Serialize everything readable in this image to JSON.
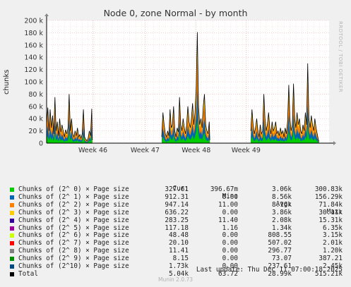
{
  "chart_data": {
    "type": "area",
    "title": "Node 0, zone Normal - by month",
    "ylabel": "chunks",
    "ylim": [
      0,
      200000
    ],
    "yticks": [
      "0",
      "20 k",
      "40 k",
      "60 k",
      "80 k",
      "100 k",
      "120 k",
      "140 k",
      "160 k",
      "180 k",
      "200 k"
    ],
    "xticks": [
      "Week 46",
      "Week 47",
      "Week 48",
      "Week 49"
    ],
    "side_label": "RRDTOOL / TOBI OETIKER",
    "legend_headers": {
      "cur": "Cur:",
      "min": "Min:",
      "avg": "Avg:",
      "max": "Max:"
    },
    "series": [
      {
        "name": "Chunks of (2^ 0) × Page size",
        "color": "#00cc00",
        "cur": "327.61",
        "min": "396.67m",
        "avg": "3.06k",
        "max": "300.83k"
      },
      {
        "name": "Chunks of (2^ 1) × Page size",
        "color": "#0066b3",
        "cur": "912.31",
        "min": "0.00",
        "avg": "8.56k",
        "max": "156.29k"
      },
      {
        "name": "Chunks of (2^ 2) × Page size",
        "color": "#ff8000",
        "cur": "947.14",
        "min": "11.00",
        "avg": "8.16k",
        "max": "71.84k"
      },
      {
        "name": "Chunks of (2^ 3) × Page size",
        "color": "#ffcc00",
        "cur": "636.22",
        "min": "0.00",
        "avg": "3.86k",
        "max": "30.11k"
      },
      {
        "name": "Chunks of (2^ 4) × Page size",
        "color": "#330099",
        "cur": "283.25",
        "min": "11.40",
        "avg": "2.08k",
        "max": "15.31k"
      },
      {
        "name": "Chunks of (2^ 5) × Page size",
        "color": "#990099",
        "cur": "117.18",
        "min": "1.16",
        "avg": "1.34k",
        "max": "6.35k"
      },
      {
        "name": "Chunks of (2^ 6) × Page size",
        "color": "#ccff00",
        "cur": "48.48",
        "min": "0.00",
        "avg": "808.55",
        "max": "3.15k"
      },
      {
        "name": "Chunks of (2^ 7) × Page size",
        "color": "#ff0000",
        "cur": "20.10",
        "min": "0.00",
        "avg": "507.02",
        "max": "2.01k"
      },
      {
        "name": "Chunks of (2^ 8) × Page size",
        "color": "#808080",
        "cur": "11.41",
        "min": "0.00",
        "avg": "296.77",
        "max": "1.20k"
      },
      {
        "name": "Chunks of (2^ 9) × Page size",
        "color": "#008f00",
        "cur": "8.15",
        "min": "0.00",
        "avg": "73.07",
        "max": "387.21"
      },
      {
        "name": "Chunks of (2^10) × Page size",
        "color": "#00487d",
        "cur": "1.73k",
        "min": "0.00",
        "avg": "237.61",
        "max": "2.45k"
      },
      {
        "name": "Total",
        "color": "#000000",
        "cur": "5.04k",
        "min": "63.72",
        "avg": "28.99k",
        "max": "515.21k"
      }
    ],
    "total_profile": {
      "segments": [
        {
          "days": [
            0.0,
            7.7
          ],
          "points": [
            [
              0.0,
              30000
            ],
            [
              0.2,
              58000
            ],
            [
              0.4,
              20000
            ],
            [
              0.6,
              55000
            ],
            [
              0.8,
              25000
            ],
            [
              1.0,
              45000
            ],
            [
              1.2,
              15000
            ],
            [
              1.4,
              75000
            ],
            [
              1.6,
              20000
            ],
            [
              1.8,
              35000
            ],
            [
              2.0,
              12000
            ],
            [
              2.2,
              40000
            ],
            [
              2.4,
              18000
            ],
            [
              2.6,
              30000
            ],
            [
              2.8,
              20000
            ],
            [
              3.0,
              10000
            ],
            [
              3.2,
              22000
            ],
            [
              3.4,
              15000
            ],
            [
              3.6,
              25000
            ],
            [
              3.8,
              80000
            ],
            [
              4.0,
              20000
            ],
            [
              4.2,
              40000
            ],
            [
              4.4,
              15000
            ],
            [
              4.6,
              10000
            ],
            [
              4.8,
              20000
            ],
            [
              5.0,
              12000
            ],
            [
              5.2,
              25000
            ],
            [
              5.4,
              10000
            ],
            [
              5.6,
              14000
            ],
            [
              5.8,
              8000
            ],
            [
              6.0,
              15000
            ],
            [
              6.2,
              55000
            ],
            [
              6.4,
              10000
            ],
            [
              6.6,
              6000
            ],
            [
              6.8,
              4000
            ],
            [
              7.0,
              8000
            ],
            [
              7.2,
              20000
            ],
            [
              7.4,
              12000
            ],
            [
              7.6,
              56000
            ],
            [
              7.7,
              5000
            ]
          ]
        },
        {
          "days": [
            19.4,
            27.5
          ],
          "points": [
            [
              19.4,
              10000
            ],
            [
              19.6,
              50000
            ],
            [
              19.8,
              30000
            ],
            [
              20.0,
              15000
            ],
            [
              20.2,
              10000
            ],
            [
              20.4,
              20000
            ],
            [
              20.6,
              12000
            ],
            [
              20.8,
              55000
            ],
            [
              21.0,
              25000
            ],
            [
              21.2,
              30000
            ],
            [
              21.4,
              60000
            ],
            [
              21.6,
              20000
            ],
            [
              21.8,
              10000
            ],
            [
              22.0,
              25000
            ],
            [
              22.2,
              18000
            ],
            [
              22.4,
              75000
            ],
            [
              22.6,
              30000
            ],
            [
              22.8,
              20000
            ],
            [
              23.0,
              40000
            ],
            [
              23.2,
              25000
            ],
            [
              23.4,
              15000
            ],
            [
              23.6,
              30000
            ],
            [
              23.8,
              60000
            ],
            [
              24.0,
              35000
            ],
            [
              24.2,
              25000
            ],
            [
              24.4,
              40000
            ],
            [
              24.6,
              65000
            ],
            [
              24.8,
              30000
            ],
            [
              25.0,
              50000
            ],
            [
              25.2,
              90000
            ],
            [
              25.4,
              181000
            ],
            [
              25.6,
              60000
            ],
            [
              25.8,
              30000
            ],
            [
              26.0,
              40000
            ],
            [
              26.2,
              25000
            ],
            [
              26.4,
              60000
            ],
            [
              26.6,
              80000
            ],
            [
              26.8,
              30000
            ],
            [
              27.0,
              20000
            ],
            [
              27.2,
              15000
            ],
            [
              27.4,
              35000
            ],
            [
              27.5,
              5000
            ]
          ]
        },
        {
          "days": [
            34.4,
            45.9
          ],
          "points": [
            [
              34.4,
              20000
            ],
            [
              34.6,
              55000
            ],
            [
              34.8,
              30000
            ],
            [
              35.0,
              15000
            ],
            [
              35.2,
              25000
            ],
            [
              35.4,
              40000
            ],
            [
              35.6,
              20000
            ],
            [
              35.8,
              10000
            ],
            [
              36.0,
              30000
            ],
            [
              36.2,
              15000
            ],
            [
              36.4,
              20000
            ],
            [
              36.6,
              80000
            ],
            [
              36.8,
              40000
            ],
            [
              37.0,
              20000
            ],
            [
              37.2,
              30000
            ],
            [
              37.4,
              50000
            ],
            [
              37.6,
              25000
            ],
            [
              37.8,
              15000
            ],
            [
              38.0,
              35000
            ],
            [
              38.2,
              20000
            ],
            [
              38.4,
              25000
            ],
            [
              38.6,
              35000
            ],
            [
              38.8,
              15000
            ],
            [
              39.0,
              20000
            ],
            [
              39.2,
              12000
            ],
            [
              39.4,
              25000
            ],
            [
              39.6,
              15000
            ],
            [
              39.8,
              20000
            ],
            [
              40.0,
              10000
            ],
            [
              40.2,
              25000
            ],
            [
              40.4,
              15000
            ],
            [
              40.6,
              35000
            ],
            [
              40.8,
              95000
            ],
            [
              41.0,
              40000
            ],
            [
              41.2,
              20000
            ],
            [
              41.4,
              30000
            ],
            [
              41.6,
              97000
            ],
            [
              41.8,
              40000
            ],
            [
              42.0,
              25000
            ],
            [
              42.2,
              50000
            ],
            [
              42.4,
              30000
            ],
            [
              42.6,
              40000
            ],
            [
              42.8,
              20000
            ],
            [
              43.0,
              15000
            ],
            [
              43.2,
              30000
            ],
            [
              43.4,
              20000
            ],
            [
              43.6,
              50000
            ],
            [
              43.8,
              30000
            ],
            [
              44.0,
              130000
            ],
            [
              44.2,
              40000
            ],
            [
              44.4,
              25000
            ],
            [
              44.6,
              45000
            ],
            [
              44.8,
              30000
            ],
            [
              45.0,
              20000
            ],
            [
              45.2,
              40000
            ],
            [
              45.4,
              25000
            ],
            [
              45.6,
              15000
            ],
            [
              45.8,
              5000
            ],
            [
              45.9,
              3000
            ]
          ]
        }
      ]
    }
  },
  "legend_footer": "Last update: Thu Dec 11 07:00:18 2025",
  "munin_version": "Munin 2.0.73"
}
